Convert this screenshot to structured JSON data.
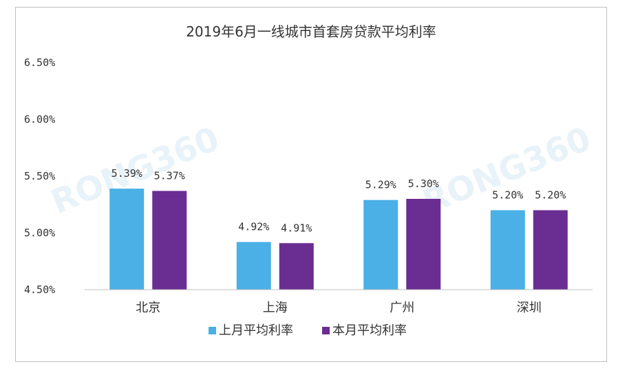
{
  "chart_data": {
    "type": "bar",
    "title": "2019年6月一线城市首套房贷款平均利率",
    "categories": [
      "北京",
      "上海",
      "广州",
      "深圳"
    ],
    "series": [
      {
        "name": "上月平均利率",
        "values": [
          5.39,
          4.92,
          5.29,
          5.2
        ],
        "labels": [
          "5.39%",
          "4.92%",
          "5.29%",
          "5.20%"
        ],
        "color": "#4ab0e6"
      },
      {
        "name": "本月平均利率",
        "values": [
          5.37,
          4.91,
          5.3,
          5.2
        ],
        "labels": [
          "5.37%",
          "4.91%",
          "5.30%",
          "5.20%"
        ],
        "color": "#6a2d91"
      }
    ],
    "ylim": [
      4.5,
      6.5
    ],
    "yticks": [
      4.5,
      5.0,
      5.5,
      6.0,
      6.5
    ],
    "ytick_labels": [
      "4.50%",
      "5.00%",
      "5.50%",
      "6.00%",
      "6.50%"
    ],
    "grid": false,
    "legend": "bottom",
    "watermark": "RONG360"
  }
}
